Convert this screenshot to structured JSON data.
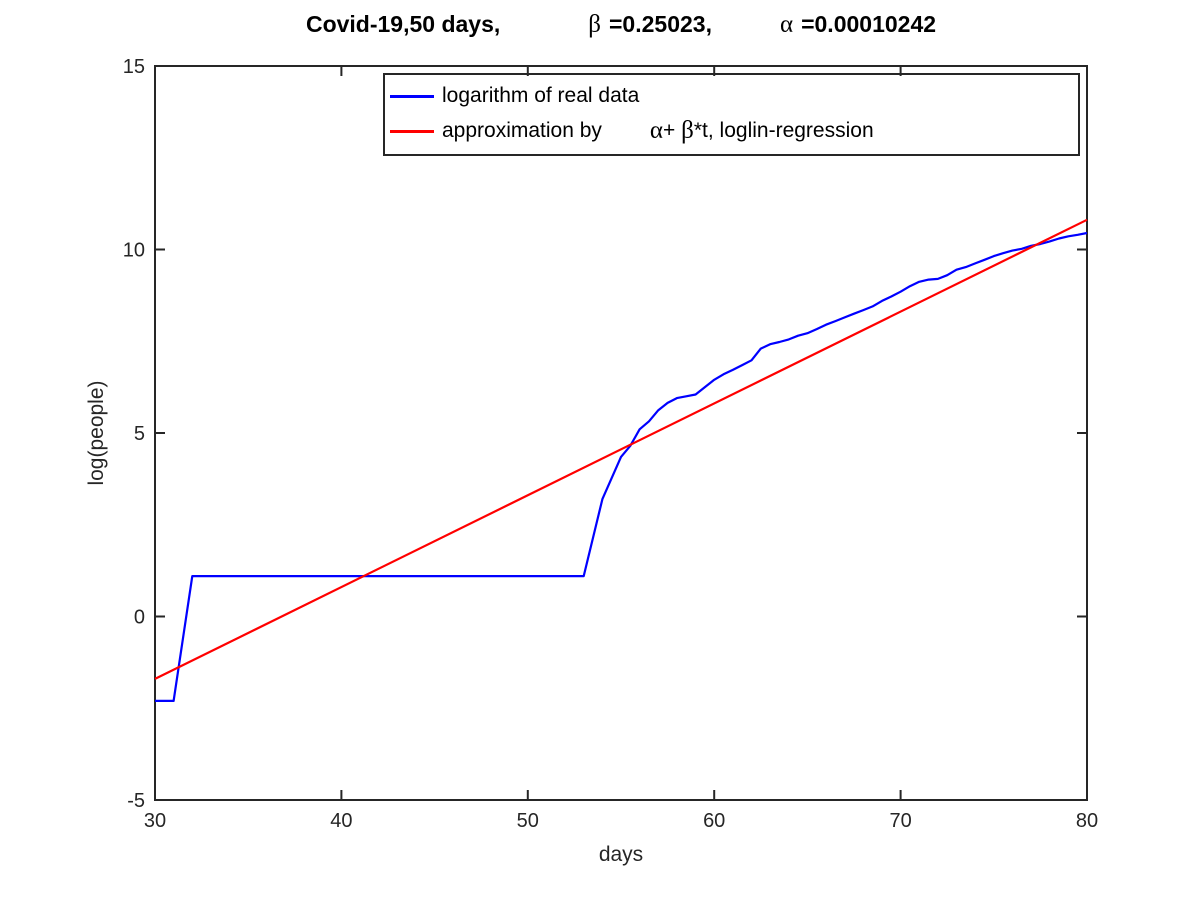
{
  "title": {
    "part1": "Covid-19,50 days,",
    "beta_symbol": "β",
    "beta_value": "=0.25023,",
    "alpha_symbol": "α",
    "alpha_value": "=0.00010242"
  },
  "legend": {
    "row1": {
      "label": "logarithm of real data"
    },
    "row2": {
      "pre": "approximation by",
      "alpha": "α",
      "mid": "+ ",
      "beta": "β",
      "post": "*t, loglin-regression"
    }
  },
  "colors": {
    "real_data_line": "#0000ff",
    "regression_line": "#ff0000",
    "axis": "#262626",
    "title_text": "#000000",
    "background": "#ffffff"
  },
  "chart_data": {
    "type": "line",
    "title": "Covid-19,50 days, β =0.25023, α =0.00010242",
    "xlabel": "days",
    "ylabel": "log(people)",
    "xlim": [
      30,
      80
    ],
    "ylim": [
      -5,
      15
    ],
    "xticks": [
      30,
      40,
      50,
      60,
      70,
      80
    ],
    "yticks": [
      -5,
      0,
      5,
      10,
      15
    ],
    "grid": false,
    "legend_position": "top-center-inside",
    "parameters": {
      "beta": 0.25023,
      "alpha": 0.00010242
    },
    "series": [
      {
        "name": "logarithm of real data",
        "color": "#0000ff",
        "points": [
          [
            30,
            -2.3
          ],
          [
            31,
            -2.3
          ],
          [
            32,
            1.1
          ],
          [
            53,
            1.1
          ],
          [
            54,
            3.2
          ],
          [
            55,
            4.35
          ],
          [
            55.5,
            4.65
          ],
          [
            56,
            5.1
          ],
          [
            56.5,
            5.32
          ],
          [
            57,
            5.62
          ],
          [
            57.5,
            5.82
          ],
          [
            58,
            5.95
          ],
          [
            58.5,
            6.0
          ],
          [
            59,
            6.05
          ],
          [
            59.5,
            6.25
          ],
          [
            60,
            6.45
          ],
          [
            60.5,
            6.6
          ],
          [
            61,
            6.72
          ],
          [
            61.5,
            6.85
          ],
          [
            62,
            6.98
          ],
          [
            62.5,
            7.3
          ],
          [
            63,
            7.42
          ],
          [
            63.5,
            7.48
          ],
          [
            64,
            7.55
          ],
          [
            64.5,
            7.65
          ],
          [
            65,
            7.72
          ],
          [
            65.5,
            7.83
          ],
          [
            66,
            7.95
          ],
          [
            66.5,
            8.05
          ],
          [
            67,
            8.15
          ],
          [
            67.5,
            8.25
          ],
          [
            68,
            8.35
          ],
          [
            68.5,
            8.45
          ],
          [
            69,
            8.6
          ],
          [
            69.5,
            8.72
          ],
          [
            70,
            8.85
          ],
          [
            70.5,
            9.0
          ],
          [
            71,
            9.12
          ],
          [
            71.5,
            9.18
          ],
          [
            72,
            9.2
          ],
          [
            72.5,
            9.3
          ],
          [
            73,
            9.45
          ],
          [
            73.5,
            9.52
          ],
          [
            74,
            9.62
          ],
          [
            74.5,
            9.72
          ],
          [
            75,
            9.82
          ],
          [
            75.5,
            9.9
          ],
          [
            76,
            9.97
          ],
          [
            76.5,
            10.02
          ],
          [
            77,
            10.1
          ],
          [
            77.5,
            10.15
          ],
          [
            78,
            10.22
          ],
          [
            78.5,
            10.3
          ],
          [
            79,
            10.36
          ],
          [
            79.5,
            10.4
          ],
          [
            80,
            10.45
          ]
        ]
      },
      {
        "name": "approximation by α+ β*t, loglin-regression",
        "color": "#ff0000",
        "points": [
          [
            30,
            -1.7
          ],
          [
            80,
            10.81
          ]
        ]
      }
    ]
  }
}
